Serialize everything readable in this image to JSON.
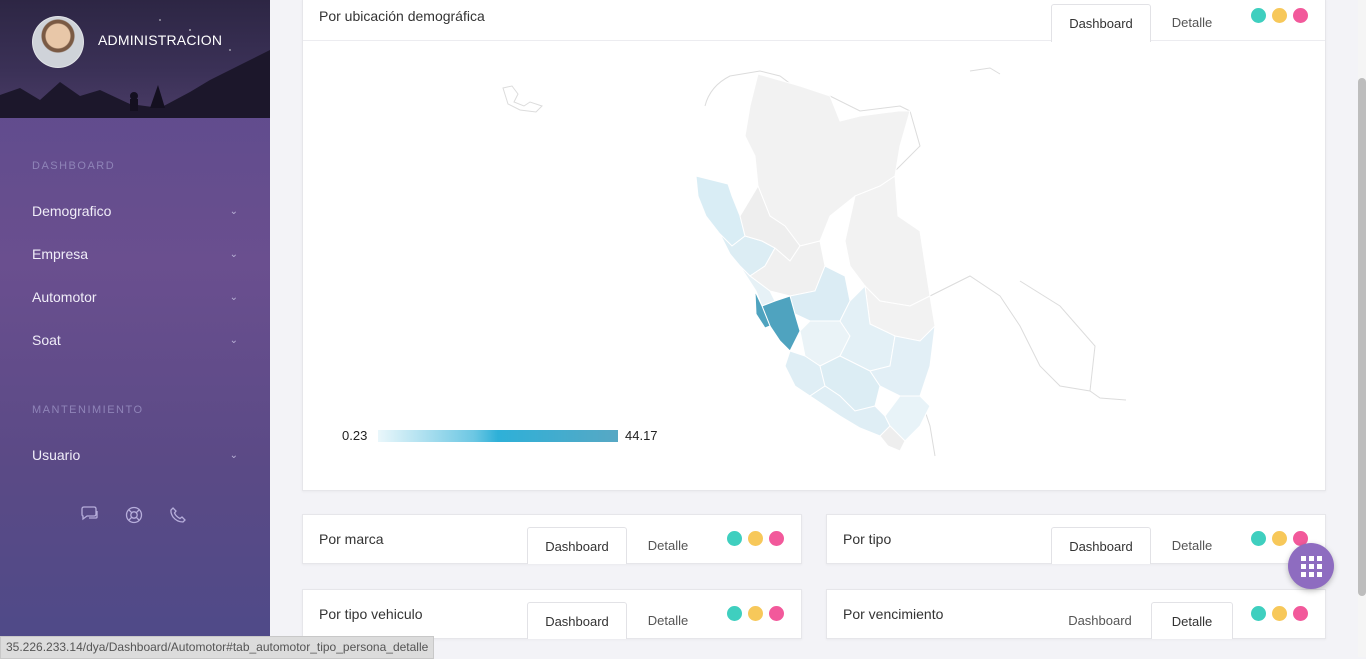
{
  "sidebar": {
    "profile_name": "ADMINISTRACION",
    "section_dashboard": "DASHBOARD",
    "section_mantenimiento": "MANTENIMIENTO",
    "items": [
      {
        "label": "Demografico"
      },
      {
        "label": "Empresa"
      },
      {
        "label": "Automotor"
      },
      {
        "label": "Soat"
      }
    ],
    "maintenance_items": [
      {
        "label": "Usuario"
      }
    ],
    "icons": [
      "chat-icon",
      "lifebuoy-icon",
      "phone-icon"
    ]
  },
  "map_card": {
    "title": "Por ubicación demográfica",
    "tabs": {
      "dashboard": "Dashboard",
      "detail": "Detalle",
      "active": "Dashboard"
    },
    "legend": {
      "min": "0.23",
      "max": "44.17"
    }
  },
  "cards": [
    {
      "title": "Por marca",
      "tabs": {
        "dashboard": "Dashboard",
        "detail": "Detalle",
        "active": "Dashboard"
      }
    },
    {
      "title": "Por tipo",
      "tabs": {
        "dashboard": "Dashboard",
        "detail": "Detalle",
        "active": "Dashboard"
      }
    },
    {
      "title": "Por tipo vehiculo",
      "tabs": {
        "dashboard": "Dashboard",
        "detail": "Detalle",
        "active": "Dashboard"
      }
    },
    {
      "title": "Por vencimiento",
      "tabs": {
        "dashboard": "Dashboard",
        "detail": "Detalle",
        "active": "Detalle"
      }
    }
  ],
  "colors": {
    "teal": "#3fcfbf",
    "yellow": "#f7c85a",
    "pink": "#f2599b",
    "fab": "#8e6cc0",
    "map_dark": "#4fa3bf",
    "map_light": "#dcedf4"
  },
  "status_url": "35.226.233.14/dya/Dashboard/Automotor#tab_automotor_tipo_persona_detalle"
}
